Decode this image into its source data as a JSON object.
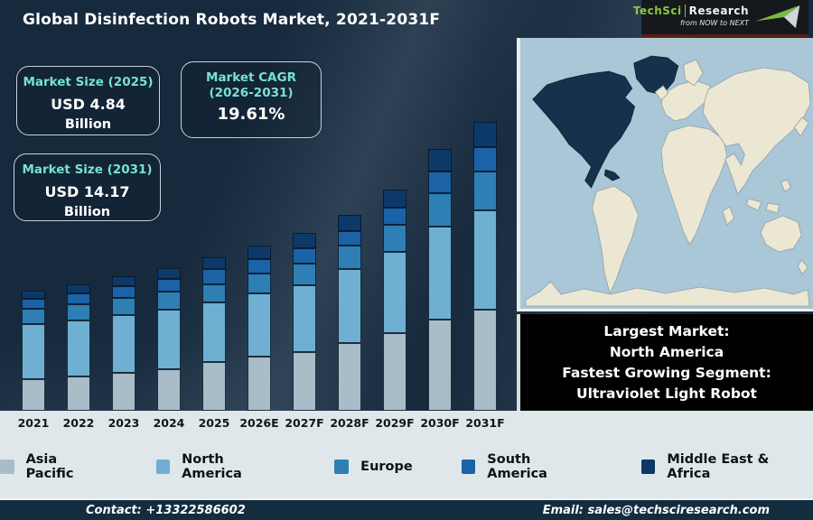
{
  "header": {
    "title": "Global Disinfection Robots Market, 2021-2031F",
    "logo": {
      "brand_primary": "TechSci",
      "brand_secondary": "Research",
      "tagline": "from NOW to NEXT"
    }
  },
  "stats": {
    "size2025": {
      "label": "Market Size (2025)",
      "value": "USD 4.84",
      "unit": "Billion"
    },
    "cagr": {
      "label_line1": "Market CAGR",
      "label_line2": "(2026-2031)",
      "value": "19.61%"
    },
    "size2031": {
      "label": "Market Size (2031)",
      "value": "USD 14.17",
      "unit": "Billion"
    }
  },
  "chart_data": {
    "type": "bar",
    "stacked": true,
    "title": "Global Disinfection Robots Market, 2021-2031F",
    "categories": [
      "2021",
      "2022",
      "2023",
      "2024",
      "2025",
      "2026E",
      "2027F",
      "2028F",
      "2029F",
      "2030F",
      "2031F"
    ],
    "value_unit": "relative bar-segment height in px (chart shows no y-axis)",
    "series": [
      {
        "name": "Asia Pacific",
        "color": "#a8bdc8",
        "values": [
          35,
          38,
          42,
          46,
          54,
          60,
          65,
          75,
          86,
          101,
          112
        ]
      },
      {
        "name": "North America",
        "color": "#6fb0d2",
        "values": [
          61,
          62,
          64,
          66,
          66,
          70,
          74,
          82,
          90,
          103,
          110
        ]
      },
      {
        "name": "Europe",
        "color": "#2e7fb4",
        "values": [
          17,
          18,
          19,
          20,
          20,
          22,
          24,
          26,
          30,
          37,
          43
        ]
      },
      {
        "name": "South America",
        "color": "#1b62a6",
        "values": [
          11,
          12,
          13,
          14,
          17,
          16,
          17,
          16,
          19,
          24,
          27
        ]
      },
      {
        "name": "Middle East & Africa",
        "color": "#0c3968",
        "values": [
          9,
          10,
          11,
          12,
          13,
          15,
          17,
          18,
          20,
          25,
          28
        ]
      }
    ],
    "annotations": {
      "market_size_2025": "USD 4.84 Billion",
      "market_size_2031": "USD 14.17 Billion",
      "cagr_2026_2031": "19.61%"
    },
    "legend_position": "bottom",
    "grid": false
  },
  "map": {
    "highlighted_region": "North America",
    "ocean_color": "#a9c7d6",
    "land_color": "#ece7d2",
    "highlight_color": "#15314b"
  },
  "callout": {
    "line1": "Largest Market:",
    "line2": "North America",
    "line3": "Fastest Growing Segment:",
    "line4": "Ultraviolet Light Robot"
  },
  "footer": {
    "contact": "Contact: +13322586602",
    "email": "Email: sales@techsciresearch.com"
  }
}
